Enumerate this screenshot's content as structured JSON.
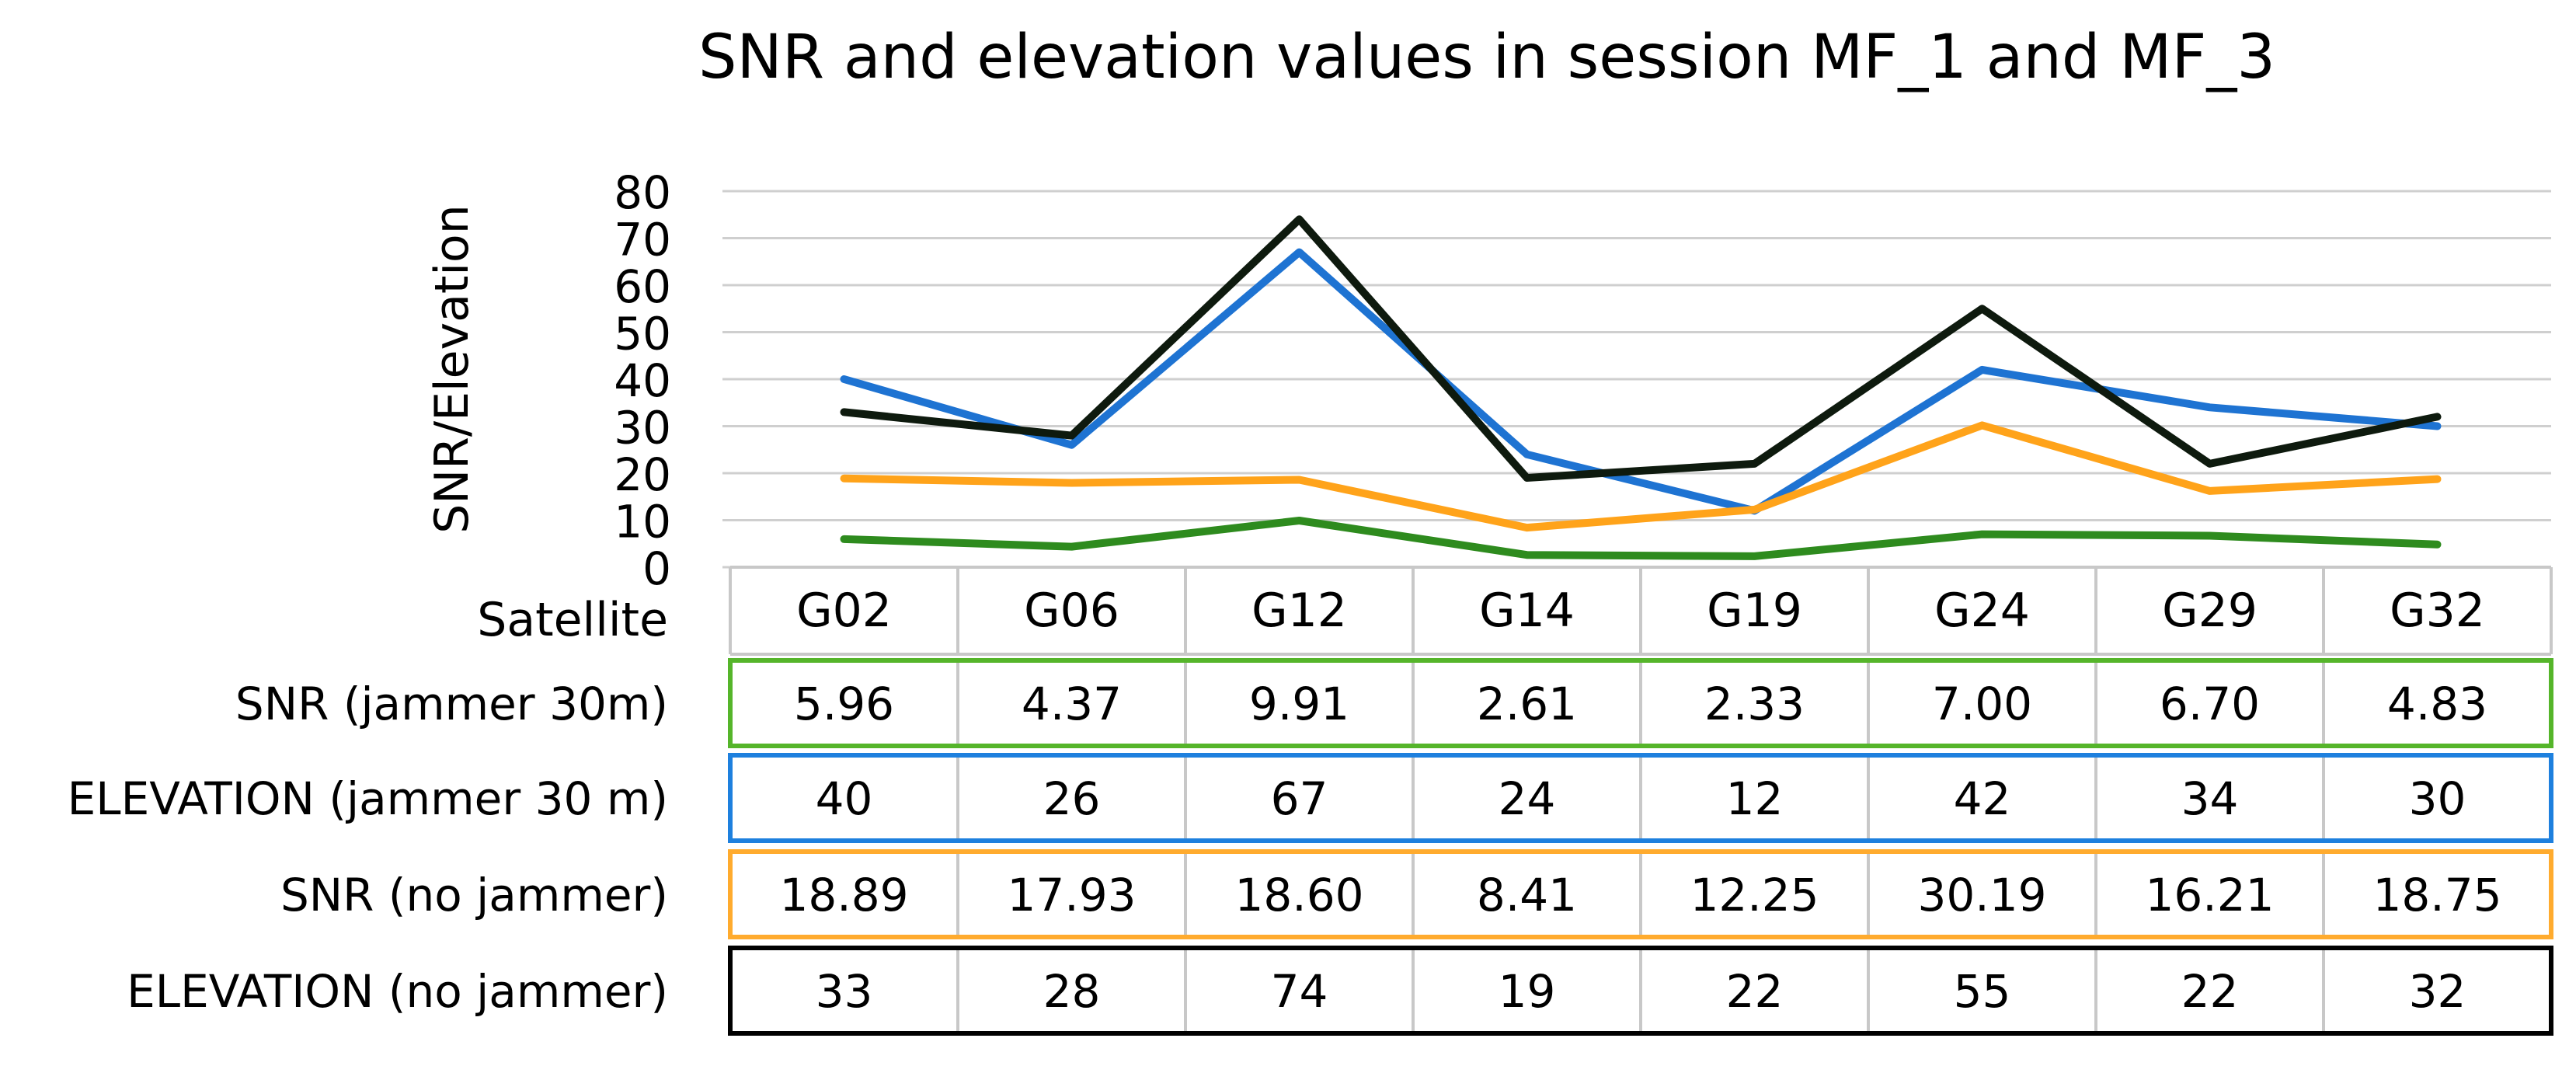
{
  "chart_data": {
    "type": "line",
    "title": "SNR and elevation values in session MF_1 and MF_3",
    "ylabel": "SNR/Elevation",
    "xlabel": "Satellite",
    "ylim": [
      0,
      80
    ],
    "yticks": [
      0,
      10,
      20,
      30,
      40,
      50,
      60,
      70,
      80
    ],
    "grid": true,
    "legend": "data table below plot",
    "categories": [
      "G02",
      "G06",
      "G12",
      "G14",
      "G19",
      "G24",
      "G29",
      "G32"
    ],
    "series": [
      {
        "name": "SNR (jammer 30m)",
        "color": "#2e8b1e",
        "values": [
          5.96,
          4.37,
          9.91,
          2.61,
          2.33,
          7.0,
          6.7,
          4.83
        ],
        "labels": [
          "5.96",
          "4.37",
          "9.91",
          "2.61",
          "2.33",
          "7.00",
          "6.70",
          "4.83"
        ]
      },
      {
        "name": "ELEVATION (jammer 30 m)",
        "color": "#1e73d2",
        "values": [
          40,
          26,
          67,
          24,
          12,
          42,
          34,
          30
        ],
        "labels": [
          "40",
          "26",
          "67",
          "24",
          "12",
          "42",
          "34",
          "30"
        ]
      },
      {
        "name": "SNR (no jammer)",
        "color": "#ffa31a",
        "values": [
          18.89,
          17.93,
          18.6,
          8.41,
          12.25,
          30.19,
          16.21,
          18.75
        ],
        "labels": [
          "18.89",
          "17.93",
          "18.60",
          "8.41",
          "12.25",
          "30.19",
          "16.21",
          "18.75"
        ]
      },
      {
        "name": "ELEVATION (no jammer)",
        "color": "#0e1a0e",
        "values": [
          33,
          28,
          74,
          19,
          22,
          55,
          22,
          32
        ],
        "labels": [
          "33",
          "28",
          "74",
          "19",
          "22",
          "55",
          "22",
          "32"
        ]
      }
    ],
    "table_border_colors": [
      "#55b52a",
      "#1e80de",
      "#ffab2e",
      "#000000"
    ]
  }
}
